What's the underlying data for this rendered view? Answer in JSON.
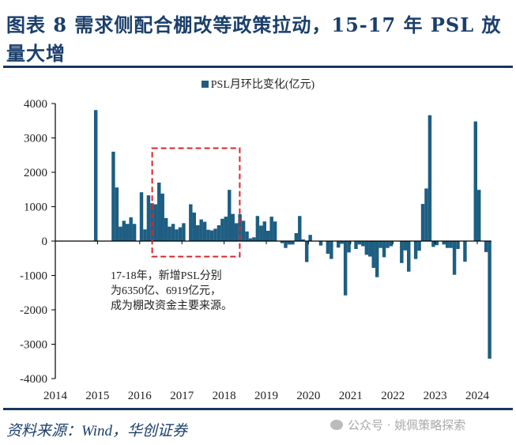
{
  "header": {
    "title_line1": "图表 8   需求侧配合棚改等政策拉动，15-17 年 PSL 放",
    "title_line2": "量大增"
  },
  "annotation": {
    "lines": [
      "17-18年，新增PSL分别",
      "为6350亿、6919亿元，",
      "成为棚改资金主要来源。"
    ]
  },
  "footer": {
    "source": "资料来源：Wind，华创证券",
    "watermark": "公众号 · 姚佩策略探索",
    "watermark_icon": "wechat-icon"
  },
  "colors": {
    "bar": "#1d5e82",
    "highlight_box": "#d9262b",
    "title": "#1b3f6b"
  },
  "chart_data": {
    "type": "bar",
    "legend": "PSL月环比变化(亿元)",
    "legend_position": "top-center",
    "grid": false,
    "ylim": [
      -4000,
      4000
    ],
    "yticks": [
      "4000",
      "3000",
      "2000",
      "1000",
      "0",
      "-1000",
      "-2000",
      "-3000",
      "-4000"
    ],
    "xticks": [
      "2014",
      "2015",
      "2016",
      "2017",
      "2018",
      "2019",
      "2020",
      "2021",
      "2022",
      "2023",
      "2024"
    ],
    "highlight_range": [
      "2016-05",
      "2018-05"
    ],
    "x": [
      "2014-12",
      "2015-01",
      "2015-02",
      "2015-03",
      "2015-04",
      "2015-05",
      "2015-06",
      "2015-07",
      "2015-08",
      "2015-09",
      "2015-10",
      "2015-11",
      "2015-12",
      "2016-01",
      "2016-02",
      "2016-03",
      "2016-04",
      "2016-05",
      "2016-06",
      "2016-07",
      "2016-08",
      "2016-09",
      "2016-10",
      "2016-11",
      "2016-12",
      "2017-01",
      "2017-02",
      "2017-03",
      "2017-04",
      "2017-05",
      "2017-06",
      "2017-07",
      "2017-08",
      "2017-09",
      "2017-10",
      "2017-11",
      "2017-12",
      "2018-01",
      "2018-02",
      "2018-03",
      "2018-04",
      "2018-05",
      "2018-06",
      "2018-07",
      "2018-08",
      "2018-09",
      "2018-10",
      "2018-11",
      "2018-12",
      "2019-01",
      "2019-02",
      "2019-03",
      "2019-04",
      "2019-05",
      "2019-06",
      "2019-07",
      "2019-08",
      "2019-09",
      "2019-10",
      "2019-11",
      "2019-12",
      "2020-01",
      "2020-02",
      "2020-03",
      "2020-04",
      "2020-05",
      "2020-06",
      "2020-07",
      "2020-08",
      "2020-09",
      "2020-10",
      "2020-11",
      "2020-12",
      "2021-01",
      "2021-02",
      "2021-03",
      "2021-04",
      "2021-05",
      "2021-06",
      "2021-07",
      "2021-08",
      "2021-09",
      "2021-10",
      "2021-11",
      "2021-12",
      "2022-01",
      "2022-02",
      "2022-03",
      "2022-04",
      "2022-05",
      "2022-06",
      "2022-07",
      "2022-08",
      "2022-09",
      "2022-10",
      "2022-11",
      "2022-12",
      "2023-01",
      "2023-02",
      "2023-03",
      "2023-04",
      "2023-05",
      "2023-06",
      "2023-07",
      "2023-08",
      "2023-09",
      "2023-10",
      "2023-11",
      "2023-12",
      "2024-01",
      "2024-02",
      "2024-03",
      "2024-04"
    ],
    "values": [
      3810,
      0,
      0,
      0,
      0,
      2600,
      1560,
      420,
      590,
      500,
      690,
      500,
      0,
      1420,
      340,
      1330,
      1100,
      1070,
      1700,
      1380,
      670,
      420,
      500,
      340,
      400,
      520,
      0,
      1070,
      830,
      460,
      630,
      560,
      330,
      310,
      360,
      460,
      650,
      710,
      1490,
      790,
      520,
      780,
      590,
      280,
      80,
      110,
      730,
      450,
      570,
      300,
      710,
      570,
      0,
      -60,
      -200,
      -100,
      -100,
      230,
      730,
      50,
      -610,
      180,
      0,
      0,
      -130,
      0,
      -370,
      -520,
      0,
      -190,
      -80,
      -1580,
      -330,
      0,
      -230,
      -100,
      -150,
      -400,
      -450,
      -780,
      -1050,
      -200,
      -470,
      -200,
      -150,
      0,
      0,
      -640,
      -270,
      -890,
      0,
      -520,
      -280,
      1080,
      1530,
      3660,
      -170,
      -120,
      0,
      -100,
      -200,
      -200,
      -980,
      -230,
      0,
      -600,
      0,
      0,
      3480,
      1490,
      0,
      -320,
      -3420
    ]
  }
}
